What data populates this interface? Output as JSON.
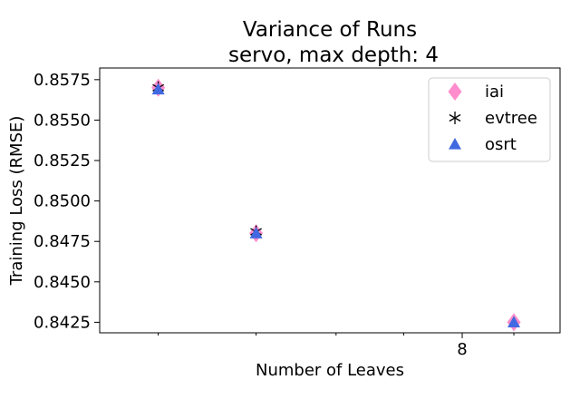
{
  "chart_data": {
    "type": "scatter",
    "title": "Variance of Runs",
    "subtitle": "servo, max depth: 4",
    "xlabel": "Number of Leaves",
    "ylabel": "Training Loss (RMSE)",
    "x_scale": "log",
    "x_ticks": [
      {
        "value": 8,
        "label": "8"
      }
    ],
    "x_minor_ticks": [
      4,
      5,
      6,
      7,
      9
    ],
    "xlim": [
      3.5,
      10.0
    ],
    "y_ticks": [
      0.8425,
      0.845,
      0.8475,
      0.85,
      0.8525,
      0.855,
      0.8575
    ],
    "y_tick_labels": [
      "0.8425",
      "0.8450",
      "0.8475",
      "0.8500",
      "0.8525",
      "0.8550",
      "0.8575"
    ],
    "ylim": [
      0.84185,
      0.85822
    ],
    "grid": false,
    "legend_position": "top-right",
    "series": [
      {
        "name": "iai",
        "marker": "diamond",
        "color": "#ff7fc6",
        "points": [
          {
            "x": 4,
            "y": 0.857
          },
          {
            "x": 5,
            "y": 0.848
          },
          {
            "x": 9,
            "y": 0.8425
          }
        ]
      },
      {
        "name": "evtree",
        "marker": "asterisk",
        "color": "#000000",
        "points": [
          {
            "x": 4,
            "y": 0.857
          },
          {
            "x": 5,
            "y": 0.8481
          }
        ]
      },
      {
        "name": "osrt",
        "marker": "triangle",
        "color": "#4169e1",
        "points": [
          {
            "x": 4,
            "y": 0.8569
          },
          {
            "x": 5,
            "y": 0.848
          },
          {
            "x": 9,
            "y": 0.8425
          }
        ]
      }
    ]
  }
}
